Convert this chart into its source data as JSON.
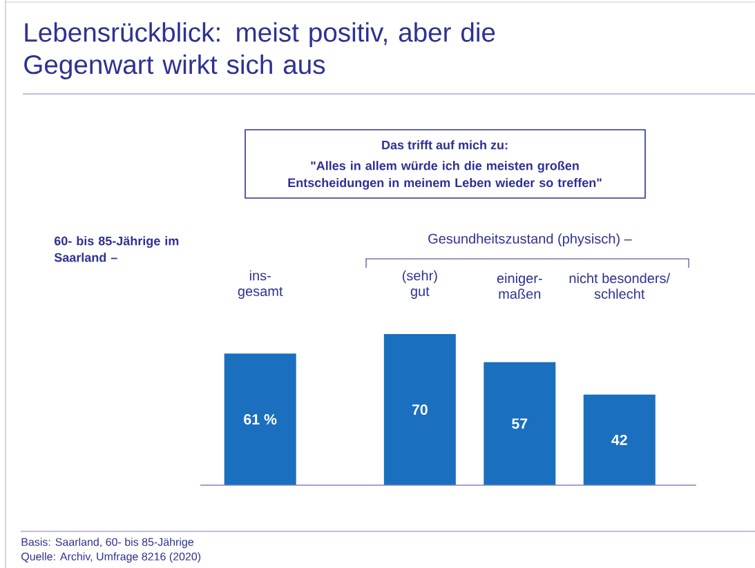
{
  "chart_data": {
    "type": "bar",
    "title": "Lebensrückblick: meist positiv, aber die Gegenwart wirkt sich aus",
    "subtitle": "Das trifft auf mich zu:",
    "categories": [
      "ins-gesamt",
      "(sehr) gut",
      "einiger-maßen",
      "nicht besonders/ schlecht"
    ],
    "values": [
      61,
      70,
      57,
      42
    ],
    "value_labels": [
      "61 %",
      "70",
      "57",
      "42"
    ],
    "color": "#1a6fbf",
    "annotations": [
      "\"Alles in allem würde ich die meisten großen Entscheidungen in meinem Leben wieder so treffen\"",
      "60- bis 85-Jährige im Saarland –",
      "Gesundheitszustand (physisch) –",
      "Basis: Saarland, 60- bis 85-Jährige",
      "Quelle: Archiv, Umfrage 8216 (2020)"
    ]
  }
}
